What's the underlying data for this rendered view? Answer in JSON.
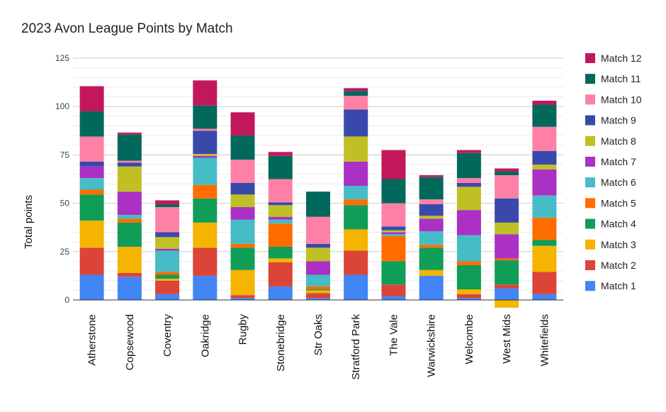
{
  "chart_data": {
    "type": "bar",
    "stacked": true,
    "title": "2023 Avon League Points by Match",
    "xlabel": "",
    "ylabel": "Total points",
    "ylim": [
      -5,
      125
    ],
    "yticks": [
      "0",
      "25",
      "50",
      "75",
      "100",
      "125"
    ],
    "grid": true,
    "legend_position": "right",
    "categories": [
      "Atherstone",
      "Copsewood",
      "Coventry",
      "Oakridge",
      "Rugby",
      "Stonebridge",
      "Str Oaks",
      "Stratford Park",
      "The Vale",
      "Warwickshire",
      "Welcombe",
      "West Mids",
      "Whitefields"
    ],
    "series": [
      {
        "name": "Match 1",
        "color": "#4285f4",
        "values": [
          13,
          12,
          3,
          12.5,
          1,
          7,
          1,
          13,
          2,
          12.5,
          1,
          6,
          3
        ]
      },
      {
        "name": "Match 2",
        "color": "#db4437",
        "values": [
          14,
          2,
          7,
          14.5,
          1.5,
          12.5,
          2.5,
          12.5,
          6,
          0,
          2,
          2,
          11.5
        ]
      },
      {
        "name": "Match 3",
        "color": "#f4b400",
        "values": [
          14,
          13.5,
          1,
          13,
          13,
          2,
          1.5,
          11,
          0,
          3,
          2.5,
          -4,
          13.5
        ]
      },
      {
        "name": "Match 4",
        "color": "#0f9d58",
        "values": [
          13.5,
          12.5,
          2,
          12.5,
          11.5,
          6,
          0.5,
          12.5,
          12,
          11.5,
          12.5,
          12.5,
          3
        ]
      },
      {
        "name": "Match 5",
        "color": "#ff6d01",
        "values": [
          2.5,
          2,
          1.5,
          7,
          2,
          12,
          1.5,
          3,
          13,
          1.5,
          2,
          1,
          11.5
        ]
      },
      {
        "name": "Match 6",
        "color": "#46bdc6",
        "values": [
          6,
          2,
          11,
          14,
          12.5,
          2,
          6,
          7,
          1,
          7,
          13.5,
          0,
          11.5
        ]
      },
      {
        "name": "Match 7",
        "color": "#ab30c4",
        "values": [
          6,
          12,
          1,
          1,
          6.5,
          1.5,
          7,
          12.5,
          1,
          6.5,
          13,
          12.5,
          13.5
        ]
      },
      {
        "name": "Match 8",
        "color": "#c0c025",
        "values": [
          0,
          13,
          6,
          1,
          6.5,
          6,
          7,
          13,
          1,
          1.5,
          12,
          6,
          2.5
        ]
      },
      {
        "name": "Match 9",
        "color": "#3949ab",
        "values": [
          2.5,
          2,
          2.5,
          12,
          6,
          1.5,
          2,
          14,
          2,
          6,
          2,
          12.5,
          7
        ]
      },
      {
        "name": "Match 10",
        "color": "#ff80a5",
        "values": [
          13,
          1,
          13,
          1,
          12,
          12,
          14,
          7,
          12,
          2.5,
          2.5,
          12,
          12.5
        ]
      },
      {
        "name": "Match 11",
        "color": "#00695c",
        "values": [
          13,
          13.5,
          1.5,
          12,
          12.5,
          12,
          13,
          2.5,
          12.5,
          11.5,
          13,
          2,
          11.5
        ]
      },
      {
        "name": "Match 12",
        "color": "#c2185b",
        "values": [
          13,
          1,
          2,
          13,
          12,
          2,
          0,
          1.5,
          15,
          1,
          1.5,
          1.5,
          2
        ]
      }
    ]
  }
}
